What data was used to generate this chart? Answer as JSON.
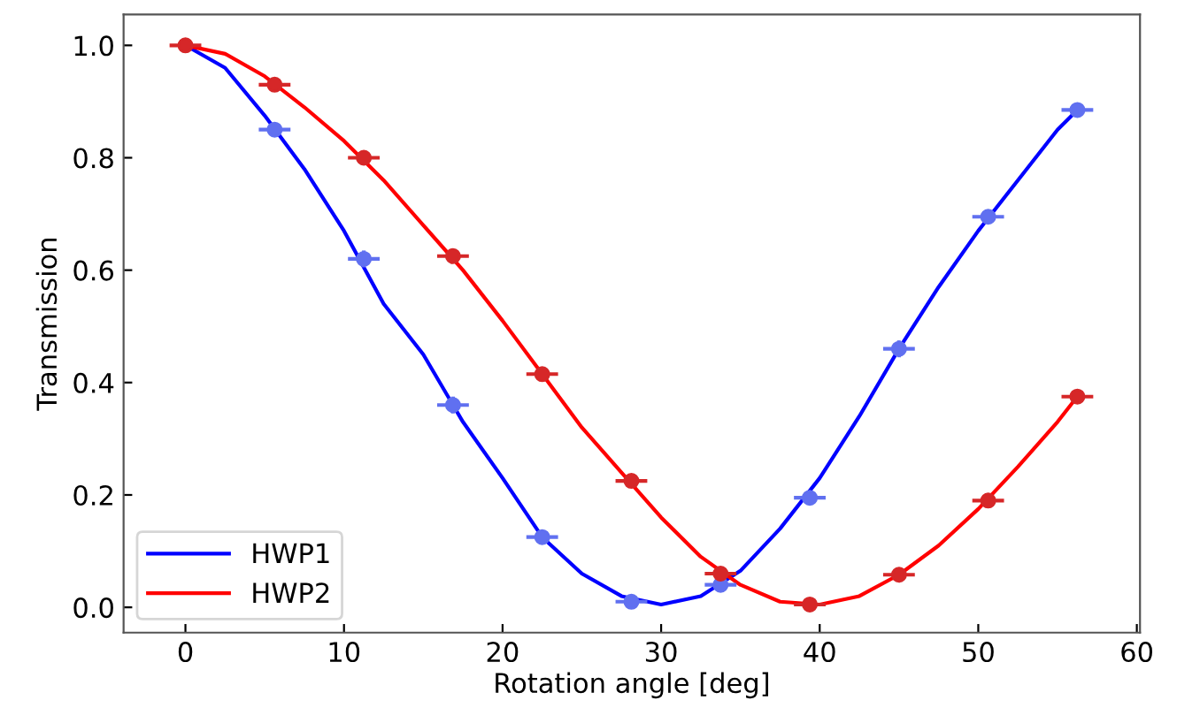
{
  "chart_data": {
    "type": "line",
    "xlabel": "Rotation angle [deg]",
    "ylabel": "Transmission",
    "xlim": [
      -3.9,
      60.2
    ],
    "ylim": [
      -0.045,
      1.055
    ],
    "xticks": [
      0,
      10,
      20,
      30,
      40,
      50,
      60
    ],
    "yticks": [
      {
        "value": 0,
        "label": "0.0"
      },
      0.2,
      0.4,
      0.6,
      0.8,
      {
        "value": 1,
        "label": "1.0"
      }
    ],
    "grid": false,
    "legend": "bottom left",
    "series": [
      {
        "name": "HWP1",
        "color": "#0000ff",
        "x": [
          0,
          2.5,
          5,
          7.5,
          10,
          12.5,
          15,
          17.5,
          20,
          22.5,
          25,
          27.5,
          30,
          32.5,
          35,
          37.5,
          40,
          42.5,
          45,
          47.5,
          50,
          52.5,
          55,
          56.25
        ],
        "values": [
          1.0,
          0.96,
          0.875,
          0.78,
          0.67,
          0.54,
          0.45,
          0.33,
          0.23,
          0.125,
          0.06,
          0.02,
          0.005,
          0.02,
          0.065,
          0.14,
          0.23,
          0.34,
          0.46,
          0.57,
          0.67,
          0.76,
          0.85,
          0.885
        ]
      },
      {
        "name": "HWP2",
        "color": "#ff0000",
        "x": [
          0,
          2.5,
          5,
          7.5,
          10,
          12.5,
          15,
          17.5,
          20,
          22.5,
          25,
          27.5,
          30,
          32.5,
          35,
          37.5,
          40,
          42.5,
          45,
          47.5,
          50,
          52.5,
          55,
          56.25
        ],
        "values": [
          1.0,
          0.985,
          0.945,
          0.89,
          0.83,
          0.76,
          0.68,
          0.6,
          0.51,
          0.415,
          0.32,
          0.24,
          0.16,
          0.09,
          0.04,
          0.01,
          0.005,
          0.02,
          0.058,
          0.11,
          0.175,
          0.25,
          0.33,
          0.375
        ]
      },
      {
        "type": "scatter",
        "marker": "circle",
        "color": "#6070f0",
        "x": [
          5.625,
          11.25,
          16.875,
          22.5,
          28.125,
          33.75,
          39.375,
          45,
          50.625,
          56.25
        ],
        "values": [
          0.85,
          0.62,
          0.36,
          0.125,
          0.01,
          0.04,
          0.195,
          0.46,
          0.695,
          0.885
        ],
        "xerrors": [
          1,
          1,
          1,
          1,
          1,
          1,
          1,
          1,
          1,
          1
        ],
        "errors": [
          0.01,
          0.015,
          0.015,
          0.01,
          0.005,
          0.005,
          0.01,
          0.015,
          0.01,
          0.01
        ]
      },
      {
        "type": "scatter",
        "marker": "circle",
        "color": "#d62728",
        "x": [
          0,
          5.625,
          11.25,
          16.875,
          22.5,
          28.125,
          33.75,
          39.375,
          45,
          50.625,
          56.25
        ],
        "values": [
          1.0,
          0.93,
          0.8,
          0.625,
          0.415,
          0.225,
          0.06,
          0.005,
          0.058,
          0.19,
          0.375
        ],
        "xerrors": [
          1,
          1,
          1,
          1,
          1,
          1,
          1,
          1,
          1,
          1,
          1
        ],
        "errors": [
          0.005,
          0.005,
          0.005,
          0.01,
          0.01,
          0.01,
          0.005,
          0.005,
          0.005,
          0.005,
          0.01
        ]
      }
    ]
  }
}
